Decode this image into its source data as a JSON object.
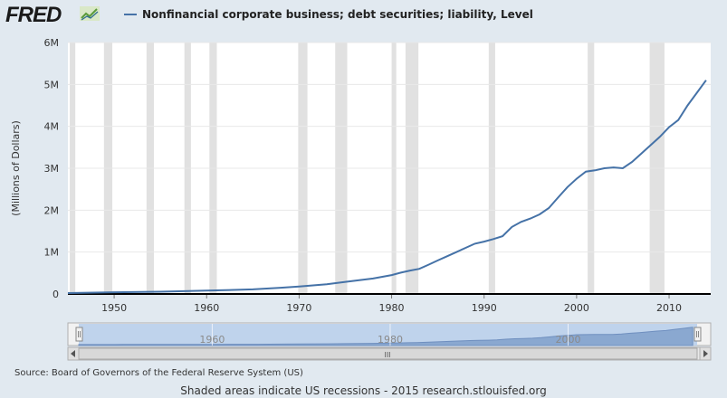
{
  "header": {
    "logo_text": "FRED",
    "series_title": "Nonfinancial corporate business; debt securities; liability, Level",
    "series_color": "#4572a7"
  },
  "chart_data": {
    "type": "line",
    "ylabel": "(Millions of Dollars)",
    "xlim": [
      1945,
      2014.5
    ],
    "ylim": [
      0,
      6000000
    ],
    "y_ticks": [
      0,
      1000000,
      2000000,
      3000000,
      4000000,
      5000000,
      6000000
    ],
    "y_tick_labels": [
      "0",
      "1M",
      "2M",
      "3M",
      "4M",
      "5M",
      "6M"
    ],
    "x_ticks": [
      1950,
      1960,
      1970,
      1980,
      1990,
      2000,
      2010
    ],
    "x_tick_labels": [
      "1950",
      "1960",
      "1970",
      "1980",
      "1990",
      "2000",
      "2010"
    ],
    "series": [
      {
        "color": "#4572a7",
        "points": [
          [
            1945,
            22000
          ],
          [
            1950,
            40000
          ],
          [
            1955,
            55000
          ],
          [
            1960,
            80000
          ],
          [
            1965,
            110000
          ],
          [
            1968,
            150000
          ],
          [
            1970,
            180000
          ],
          [
            1973,
            230000
          ],
          [
            1975,
            290000
          ],
          [
            1978,
            370000
          ],
          [
            1980,
            450000
          ],
          [
            1981,
            510000
          ],
          [
            1982,
            560000
          ],
          [
            1983,
            600000
          ],
          [
            1984,
            700000
          ],
          [
            1985,
            800000
          ],
          [
            1986,
            900000
          ],
          [
            1987,
            1000000
          ],
          [
            1988,
            1100000
          ],
          [
            1989,
            1200000
          ],
          [
            1990,
            1250000
          ],
          [
            1991,
            1310000
          ],
          [
            1992,
            1380000
          ],
          [
            1993,
            1600000
          ],
          [
            1994,
            1720000
          ],
          [
            1995,
            1800000
          ],
          [
            1996,
            1900000
          ],
          [
            1997,
            2050000
          ],
          [
            1998,
            2300000
          ],
          [
            1999,
            2550000
          ],
          [
            2000,
            2750000
          ],
          [
            2001,
            2920000
          ],
          [
            2002,
            2950000
          ],
          [
            2003,
            3000000
          ],
          [
            2004,
            3020000
          ],
          [
            2005,
            3000000
          ],
          [
            2006,
            3150000
          ],
          [
            2007,
            3350000
          ],
          [
            2008,
            3550000
          ],
          [
            2009,
            3750000
          ],
          [
            2010,
            3980000
          ],
          [
            2011,
            4150000
          ],
          [
            2012,
            4500000
          ],
          [
            2013,
            4800000
          ],
          [
            2014,
            5100000
          ]
        ]
      }
    ],
    "recessions": [
      [
        1945.2,
        1945.8
      ],
      [
        1948.9,
        1949.8
      ],
      [
        1953.5,
        1954.3
      ],
      [
        1957.6,
        1958.3
      ],
      [
        1960.3,
        1961.1
      ],
      [
        1969.9,
        1970.9
      ],
      [
        1973.9,
        1975.2
      ],
      [
        1980.0,
        1980.5
      ],
      [
        1981.5,
        1982.9
      ],
      [
        1990.5,
        1991.2
      ],
      [
        2001.2,
        2001.9
      ],
      [
        2007.9,
        2009.5
      ]
    ],
    "navigator": {
      "tick_labels": [
        "1960",
        "1980",
        "2000"
      ],
      "tick_years": [
        1960,
        1980,
        2000
      ],
      "grip_symbol": "III"
    }
  },
  "footer": {
    "source": "Source: Board of Governors of the Federal Reserve System (US)",
    "note": "Shaded areas indicate US recessions - 2015 research.stlouisfed.org"
  }
}
